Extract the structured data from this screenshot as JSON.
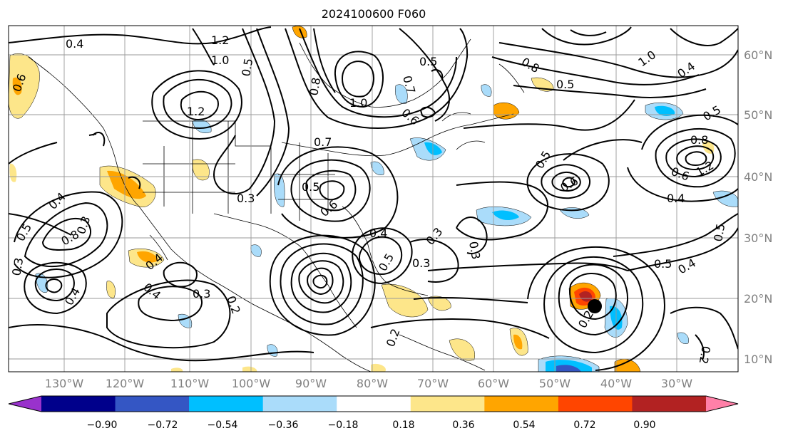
{
  "title": "2024100600 F060",
  "map": {
    "lon_ticks": [
      "130°W",
      "120°W",
      "110°W",
      "100°W",
      "90°W",
      "80°W",
      "70°W",
      "60°W",
      "50°W",
      "40°W",
      "30°W"
    ],
    "lat_ticks": [
      "60°N",
      "50°N",
      "40°N",
      "30°N",
      "20°N",
      "10°N"
    ],
    "contour_labels": [
      "0.4",
      "1.2",
      "1.0",
      "0.6",
      "0.8",
      "1.2",
      "0.5",
      "0.5",
      "0.7",
      "1.0",
      "0.6",
      "0.5",
      "0.8",
      "1.0",
      "0.4",
      "0.5",
      "0.8",
      "0.4",
      "0.6",
      "1.2",
      "0.5",
      "0.6",
      "0.5",
      "0.3",
      "0.4",
      "0.7",
      "0.6",
      "0.4",
      "0.5",
      "0.3",
      "0.3",
      "0.3",
      "0.2",
      "0.4",
      "0.3",
      "0.8",
      "0.5",
      "0.4",
      "0.5",
      "0.3",
      "0.5",
      "0.2",
      "0.2",
      "0.4",
      "0.3",
      "0.4",
      "0.2"
    ],
    "storm_marker": "tropical-cyclone-center"
  },
  "colorbar": {
    "ticks": [
      "−0.90",
      "−0.72",
      "−0.54",
      "−0.36",
      "−0.18",
      "0.18",
      "0.36",
      "0.54",
      "0.72",
      "0.90"
    ],
    "colors": [
      "#9932cc",
      "#00008b",
      "#3456c4",
      "#00bfff",
      "#aadcfa",
      "#ffffff",
      "#fde68a",
      "#ffa500",
      "#ff4500",
      "#b22222",
      "#ff80a8"
    ]
  },
  "fill_colors": {
    "light_blue": "#aadcfa",
    "blue": "#00bfff",
    "dark_blue": "#3456c4",
    "light_yellow": "#fde68a",
    "orange": "#ffa500",
    "red_orange": "#ff4500",
    "dark_red": "#b22222"
  }
}
